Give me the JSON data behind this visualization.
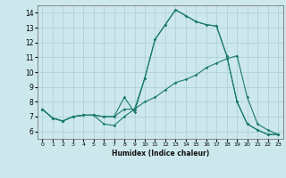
{
  "xlabel": "Humidex (Indice chaleur)",
  "background_color": "#cce8ec",
  "grid_color": "#aacdd4",
  "line_color": "#1a7a6e",
  "xlim": [
    -0.5,
    23.5
  ],
  "ylim": [
    5.5,
    14.5
  ],
  "xticks": [
    0,
    1,
    2,
    3,
    4,
    5,
    6,
    7,
    8,
    9,
    10,
    11,
    12,
    13,
    14,
    15,
    16,
    17,
    18,
    19,
    20,
    21,
    22,
    23
  ],
  "yticks": [
    6,
    7,
    8,
    9,
    10,
    11,
    12,
    13,
    14
  ],
  "line1_x": [
    0,
    1,
    2,
    3,
    4,
    5,
    6,
    7,
    8,
    9,
    10,
    11,
    12,
    13,
    14,
    15,
    16,
    17,
    18,
    19,
    20,
    21,
    22,
    23
  ],
  "line1_y": [
    7.5,
    6.9,
    6.7,
    7.0,
    7.1,
    7.1,
    7.0,
    7.0,
    7.5,
    7.5,
    8.0,
    8.3,
    8.8,
    9.3,
    9.5,
    9.8,
    10.3,
    10.6,
    10.9,
    11.1,
    8.3,
    6.5,
    6.1,
    5.8
  ],
  "line2_x": [
    0,
    1,
    2,
    3,
    4,
    5,
    6,
    7,
    8,
    9,
    10,
    11,
    12,
    13,
    14,
    15,
    16,
    17,
    18,
    19,
    20,
    21,
    22,
    23
  ],
  "line2_y": [
    7.5,
    6.9,
    6.7,
    7.0,
    7.1,
    7.1,
    6.5,
    6.4,
    7.0,
    7.5,
    9.6,
    12.2,
    13.2,
    14.2,
    13.8,
    13.4,
    13.2,
    13.1,
    11.1,
    8.0,
    6.5,
    6.1,
    5.8,
    5.8
  ],
  "line3_x": [
    0,
    1,
    2,
    3,
    4,
    5,
    6,
    7,
    8,
    9,
    10,
    11,
    12,
    13,
    14,
    15,
    16,
    17,
    18,
    19,
    20,
    21,
    22,
    23
  ],
  "line3_y": [
    7.5,
    6.9,
    6.7,
    7.0,
    7.1,
    7.1,
    7.0,
    7.0,
    8.3,
    7.3,
    9.6,
    12.2,
    13.2,
    14.2,
    13.8,
    13.4,
    13.2,
    13.1,
    11.1,
    8.0,
    6.5,
    6.1,
    5.8,
    5.8
  ]
}
